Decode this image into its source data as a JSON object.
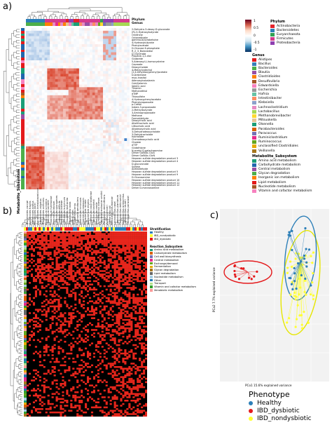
{
  "panels": {
    "a": "a)",
    "b": "b)",
    "c": "c)"
  },
  "a": {
    "track_labels": [
      "Phylum",
      "Genus"
    ],
    "row_labels": [
      "2-Dehydro-3-deoxy-D-gluconate",
      "(R)-3-Hydroxybutyrate",
      "Ornithine",
      "Octanedioate",
      "gamma-butyrobetaine",
      "4-Hydroxybutyrate",
      "Phenylacetate",
      "D-Glucose 6-phosphate",
      "R_2_3_Butanediol",
      "D-Glycerate",
      "Propane-1,2-diol",
      "Glutarate",
      "5-Adenosyl-L-homocysteine",
      "Caproate",
      "Deoxycholate",
      "4-Methylcatechol",
      "(2,4-Dihydroxyphenyl)acetate",
      "D-Arabinose",
      "myo-Inositol",
      "Adenosylcobalamin",
      "Cob(I)alamin",
      "Valeric acid",
      "Thiamin",
      "Methanethiol",
      "dTMP",
      "Thiosulfate",
      "4-Hydroxyphenylacetate",
      "Phenylpropanoate",
      "p-Cresol",
      "Indole-3-propanoate",
      "2-Methylbutyrate",
      "3-Aminopropanoate",
      "Methane",
      "Formaldehyde",
      "Deoxycholic acid",
      "Allolithocholic acid",
      "Lithocholic acid",
      "Allodeoxycholic acid",
      "3-Dehydrodeoxycholate",
      "3-Dehydrocholate",
      "Isocholate",
      "Chenodeoxycholic acid",
      "Cholate",
      "dTTP",
      "Glutathione",
      "N-acetyl-D-galactosamine",
      "Dimer GalNAc-GlcA",
      "Dimer GalNAc-GlcN",
      "Heparan sulfate degradation product 3",
      "Heparan sulfate degradation product 4",
      "D-glucuronate",
      "Sulfate",
      "Acetaldehyde",
      "Heparan sulfate degradation product 5",
      "Heparan sulfate degradation product 9",
      "D-Glucosamine",
      "Heparan sulfate degradation product 10",
      "Heparan sulfate degradation product 11",
      "Heparan sulfate degradation product 12",
      "Dimer D-mannosamine"
    ],
    "col_labels": [
      "Bacteroides caccae",
      "Bacteroides fragilis",
      "Bacteroides ovatus",
      "Bacteroides dorei",
      "Bacteroides thetaiotaomicron",
      "Bacteroides vulgatus",
      "Bacteroides uniformis",
      "Clostridium scindens",
      "Clostridium sordellii",
      "Clostridium hylemonae",
      "Clostridium leptum",
      "Clostridium sporogenes",
      "Clostridium difficile",
      "Clostridium bolteae",
      "Clostridium butyricum",
      "Mitsuokella multacida",
      "Edwardsiella tarda",
      "Hafnia alvei",
      "Eggerthella lenta",
      "Collinsella aerofaciens",
      "Clostridium innocuum",
      "Clostridium ramosum",
      "Eubacterium rectale",
      "Eubacterium eligens",
      "Clostridium clostridioforme",
      "Clostridium bartlettii",
      "Clostridium nexile",
      "Ruminococcus obeum",
      "Methanobrevibacter smithii",
      "Paracoccus denitrificans",
      "Proteus penneri",
      "Escherichia coli",
      "Klebsiella pneumoniae",
      "Lactobacillus casei",
      "Lactobacillus plantarum",
      "Lactobacillus delbrueckii",
      "Lactobacillus acidophilus",
      "Lactobacillus reuteri",
      "Lactobacillus paracasei"
    ],
    "axis_label": "Metabolite_Subsystem",
    "colorbar": {
      "ticks": [
        "1",
        "0.5",
        "0",
        "-0.5",
        "-1"
      ]
    },
    "legend": {
      "phylum": {
        "title": "Phylum",
        "items": [
          {
            "label": "Actinobacteria",
            "color": "#e3222a"
          },
          {
            "label": "Bacteroidetes",
            "color": "#2c7fb8"
          },
          {
            "label": "Euryarchaeota",
            "color": "#31a354"
          },
          {
            "label": "Firmicutes",
            "color": "#d43a8e"
          },
          {
            "label": "Proteobacteria",
            "color": "#8e3fb0"
          }
        ]
      },
      "genus": {
        "title": "Genus",
        "items": [
          {
            "label": "Alistipes",
            "color": "#e41a1c"
          },
          {
            "label": "Bacillus",
            "color": "#377eb8"
          },
          {
            "label": "Bacteroides",
            "color": "#4daf4a"
          },
          {
            "label": "Blautia",
            "color": "#984ea3"
          },
          {
            "label": "Clostridioides",
            "color": "#ff7f00"
          },
          {
            "label": "Desulfovibrio",
            "color": "#a65628"
          },
          {
            "label": "Edwardsiella",
            "color": "#f781bf"
          },
          {
            "label": "Escherichia",
            "color": "#999999"
          },
          {
            "label": "Hafnia",
            "color": "#66c2a5"
          },
          {
            "label": "Intestinibacter",
            "color": "#fc8d62"
          },
          {
            "label": "Klebsiella",
            "color": "#8da0cb"
          },
          {
            "label": "Lachnoclostridium",
            "color": "#e78ac3"
          },
          {
            "label": "Lactobacillus",
            "color": "#a6d854"
          },
          {
            "label": "Methanobrevibacter",
            "color": "#ffd92f"
          },
          {
            "label": "Mitsuokella",
            "color": "#e5c494"
          },
          {
            "label": "Olsenella",
            "color": "#1b9e77"
          },
          {
            "label": "Parabacteroides",
            "color": "#d95f02"
          },
          {
            "label": "Paracoccus",
            "color": "#7570b3"
          },
          {
            "label": "Ruminiclostridium",
            "color": "#e7298a"
          },
          {
            "label": "Ruminococcus",
            "color": "#66a61e"
          },
          {
            "label": "unclassified Clostridiales",
            "color": "#e6ab02"
          },
          {
            "label": "Veillonella",
            "color": "#a6761d"
          }
        ]
      },
      "subsystem": {
        "title": "Metabolite_Subsystem",
        "items": [
          {
            "label": "Amino acid metabolism",
            "color": "#1b9e77"
          },
          {
            "label": "Carbohydrate metabolism",
            "color": "#2166ac"
          },
          {
            "label": "Central metabolism",
            "color": "#984ea3"
          },
          {
            "label": "Glycan degradation",
            "color": "#4daf4a"
          },
          {
            "label": "Inorganic ion metabolism",
            "color": "#ff7f00"
          },
          {
            "label": "Lipid metabolism",
            "color": "#e41a1c"
          },
          {
            "label": "Nucleotide metabolism",
            "color": "#a65628"
          },
          {
            "label": "Vitamin and cofactor metabolism",
            "color": "#f781bf"
          }
        ]
      }
    }
  },
  "b": {
    "legend": {
      "stratification": {
        "title": "Stratification",
        "items": [
          {
            "label": "Healthy",
            "color": "#2c7fb8"
          },
          {
            "label": "IBD_nondysbiotic",
            "color": "#ffff33"
          },
          {
            "label": "IBD_dysbiotic",
            "color": "#e41a1c"
          }
        ]
      },
      "reaction": {
        "title": "Reaction_Subsystem",
        "items": [
          {
            "label": "Amino acid metabolism",
            "color": "#1b9e77"
          },
          {
            "label": "Carbohydrate metabolism",
            "color": "#d95f02"
          },
          {
            "label": "Cell wall biosynthesis",
            "color": "#7570b3"
          },
          {
            "label": "Central metabolism",
            "color": "#e7298a"
          },
          {
            "label": "Exchange/demand",
            "color": "#66a61e"
          },
          {
            "label": "Fermentation",
            "color": "#e6ab02"
          },
          {
            "label": "Glycan degradation",
            "color": "#a6761d"
          },
          {
            "label": "Lipid metabolism",
            "color": "#666666"
          },
          {
            "label": "Nucleotide metabolism",
            "color": "#a6cee3"
          },
          {
            "label": "Other",
            "color": "#1f78b4"
          },
          {
            "label": "Transport",
            "color": "#b2df8a"
          },
          {
            "label": "Vitamin and cofactor metabolism",
            "color": "#33a02c"
          },
          {
            "label": "Xenobiotic metabolism",
            "color": "#fb9a99"
          }
        ]
      }
    }
  },
  "c": {
    "xlabel": "PCo1 15.6% explained variance",
    "ylabel": "PCo2 7.7% explained variance",
    "legend": {
      "title": "Phenotype",
      "items": [
        {
          "label": "Healthy",
          "color": "#2c7fb8"
        },
        {
          "label": "IBD_dysbiotic",
          "color": "#e41a1c"
        },
        {
          "label": "IBD_nondysbiotic",
          "color": "#ffff33"
        }
      ]
    }
  }
}
